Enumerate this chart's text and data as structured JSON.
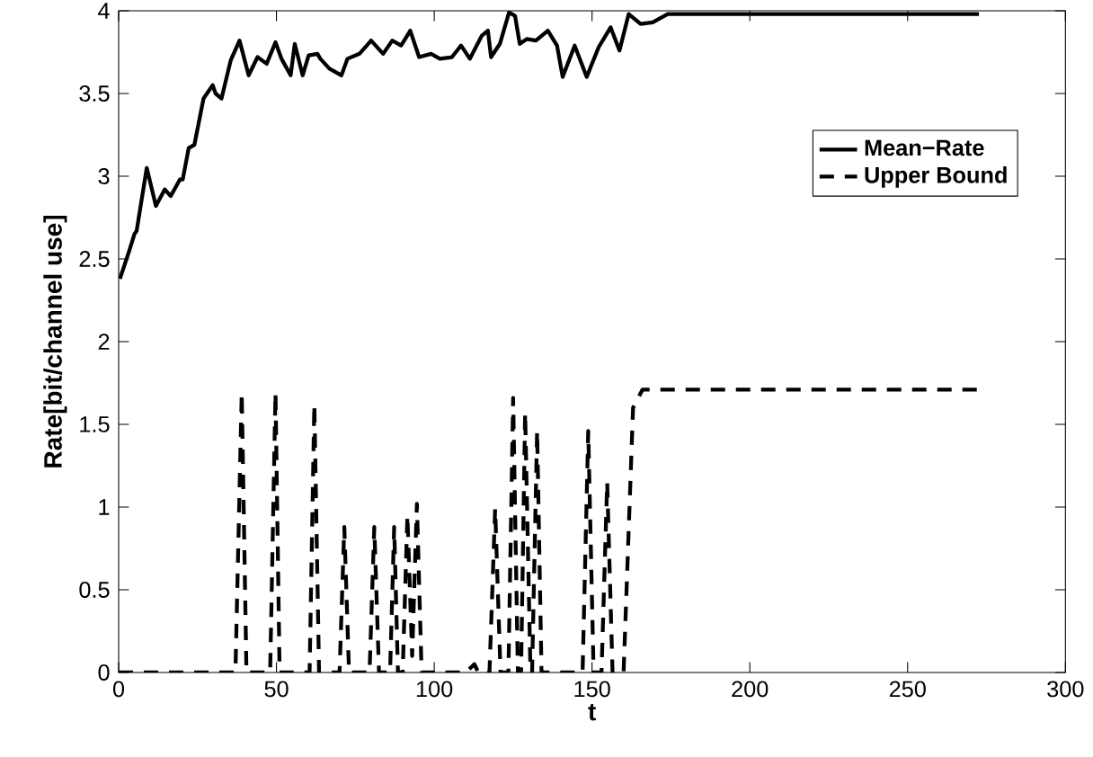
{
  "chart_data": {
    "type": "line",
    "xlabel": "t",
    "ylabel": "Rate[bit/channel use]",
    "xlim": [
      0,
      300
    ],
    "ylim": [
      0,
      4
    ],
    "xticks": [
      0,
      50,
      100,
      150,
      200,
      250,
      300
    ],
    "yticks": [
      0,
      0.5,
      1,
      1.5,
      2,
      2.5,
      3,
      3.5,
      4
    ],
    "legend": "top right",
    "grid": false,
    "series": [
      {
        "name": "Mean−Rate",
        "color": "#000000",
        "line_style": "solid",
        "x": [
          0.4,
          3.2,
          5,
          5.7,
          8.9,
          11.8,
          14.6,
          16.5,
          19.4,
          20.3,
          22.2,
          24,
          26.9,
          29.8,
          30.7,
          32.6,
          35.5,
          38.3,
          41.2,
          44,
          46.9,
          49.7,
          51.6,
          54.5,
          55.8,
          58.3,
          60.2,
          63,
          63.9,
          66.8,
          70.6,
          72.5,
          76.3,
          80,
          83.8,
          86.7,
          89.5,
          92.4,
          95.2,
          99,
          101.8,
          105.6,
          108.5,
          111.3,
          115.1,
          117,
          118,
          120.8,
          123.7,
          125.6,
          127.1,
          129.4,
          132.2,
          136,
          138.9,
          140.7,
          144.5,
          148.3,
          152.1,
          155.9,
          158.7,
          161.6,
          165.4,
          169.2,
          174,
          272.6
        ],
        "values": [
          2.38,
          2.54,
          2.65,
          2.67,
          3.05,
          2.82,
          2.92,
          2.88,
          2.98,
          2.98,
          3.17,
          3.19,
          3.47,
          3.55,
          3.5,
          3.47,
          3.7,
          3.82,
          3.61,
          3.72,
          3.68,
          3.81,
          3.71,
          3.61,
          3.8,
          3.61,
          3.73,
          3.74,
          3.71,
          3.65,
          3.61,
          3.71,
          3.74,
          3.82,
          3.74,
          3.82,
          3.79,
          3.88,
          3.72,
          3.74,
          3.71,
          3.72,
          3.79,
          3.71,
          3.85,
          3.88,
          3.72,
          3.8,
          3.99,
          3.97,
          3.8,
          3.83,
          3.82,
          3.88,
          3.79,
          3.6,
          3.79,
          3.6,
          3.78,
          3.9,
          3.76,
          3.98,
          3.92,
          3.93,
          3.98,
          3.98
        ]
      },
      {
        "name": "Upper Bound",
        "color": "#000000",
        "line_style": "dashed",
        "x": [
          0,
          37,
          39,
          40.5,
          48,
          49.7,
          51,
          60.5,
          62,
          63.5,
          70,
          71.5,
          73,
          79.5,
          81,
          82.5,
          86,
          87.3,
          88.5,
          90,
          91.5,
          93,
          94.5,
          96,
          110,
          112.7,
          114,
          117.5,
          119.3,
          121,
          123.5,
          125,
          126.5,
          127.5,
          128.8,
          130.5,
          131,
          132.6,
          134,
          147,
          148.8,
          150.5,
          153,
          154.8,
          156.5,
          160,
          163,
          166,
          272.6
        ],
        "values": [
          0,
          0,
          1.69,
          0,
          0,
          1.69,
          0,
          0,
          1.62,
          0,
          0,
          0.88,
          0,
          0,
          0.88,
          0,
          0,
          0.88,
          0,
          0,
          0.95,
          0.1,
          1.02,
          0,
          0,
          0.05,
          0,
          0,
          0.99,
          0,
          0,
          1.66,
          0,
          0,
          1.57,
          0,
          0,
          1.46,
          0,
          0,
          1.46,
          0,
          0,
          1.15,
          0,
          0,
          1.6,
          1.71,
          1.71
        ]
      }
    ]
  }
}
